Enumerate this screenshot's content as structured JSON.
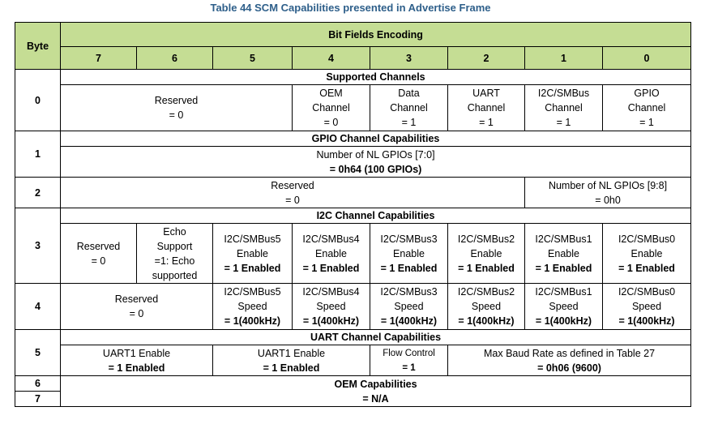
{
  "caption": "Table 44 SCM Capabilities presented in Advertise Frame",
  "header": {
    "byte": "Byte",
    "bitfields": "Bit Fields Encoding",
    "bits": [
      "7",
      "6",
      "5",
      "4",
      "3",
      "2",
      "1",
      "0"
    ]
  },
  "rows": {
    "byte0": {
      "byte": "0",
      "title": "Supported Channels",
      "reserved": [
        "Reserved",
        "= 0"
      ],
      "oem": [
        "OEM",
        "Channel",
        "= 0"
      ],
      "data": [
        "Data",
        "Channel",
        "= 1"
      ],
      "uart": [
        "UART",
        "Channel",
        "= 1"
      ],
      "i2c": [
        "I2C/SMBus",
        "Channel",
        "= 1"
      ],
      "gpio": [
        "GPIO",
        "Channel",
        "= 1"
      ]
    },
    "byte1": {
      "byte": "1",
      "title": "GPIO Channel Capabilities",
      "value": [
        "Number of NL GPIOs [7:0]",
        "= 0h64 (100 GPIOs)"
      ]
    },
    "byte2": {
      "byte": "2",
      "reserved": [
        "Reserved",
        "= 0"
      ],
      "gpios": [
        "Number of NL GPIOs [9:8]",
        "= 0h0"
      ]
    },
    "byte3": {
      "byte": "3",
      "title": "I2C Channel Capabilities",
      "reserved": [
        "Reserved",
        "= 0"
      ],
      "echo": [
        "Echo",
        "Support",
        "=1: Echo",
        "supported"
      ],
      "enables": [
        [
          "I2C/SMBus5",
          "Enable",
          "= 1 Enabled"
        ],
        [
          "I2C/SMBus4",
          "Enable",
          "= 1 Enabled"
        ],
        [
          "I2C/SMBus3",
          "Enable",
          "= 1 Enabled"
        ],
        [
          "I2C/SMBus2",
          "Enable",
          "= 1 Enabled"
        ],
        [
          "I2C/SMBus1",
          "Enable",
          "= 1 Enabled"
        ],
        [
          "I2C/SMBus0",
          "Enable",
          "= 1 Enabled"
        ]
      ]
    },
    "byte4": {
      "byte": "4",
      "reserved": [
        "Reserved",
        "= 0"
      ],
      "speeds": [
        [
          "I2C/SMBus5",
          "Speed",
          "= 1(400kHz)"
        ],
        [
          "I2C/SMBus4",
          "Speed",
          "= 1(400kHz)"
        ],
        [
          "I2C/SMBus3",
          "Speed",
          "= 1(400kHz)"
        ],
        [
          "I2C/SMBus2",
          "Speed",
          "= 1(400kHz)"
        ],
        [
          "I2C/SMBus1",
          "Speed",
          "= 1(400kHz)"
        ],
        [
          "I2C/SMBus0",
          "Speed",
          "= 1(400kHz)"
        ]
      ]
    },
    "byte5": {
      "byte": "5",
      "title": "UART Channel Capabilities",
      "uart1a": [
        "UART1 Enable",
        "= 1 Enabled"
      ],
      "uart1b": [
        "UART1 Enable",
        "= 1 Enabled"
      ],
      "flow": [
        "Flow Control",
        "= 1"
      ],
      "baud": [
        "Max Baud Rate as defined in Table 27",
        "= 0h06 (9600)"
      ]
    },
    "byte6": {
      "byte": "6",
      "title": "OEM Capabilities"
    },
    "byte7": {
      "byte": "7",
      "value": "= N/A"
    }
  }
}
